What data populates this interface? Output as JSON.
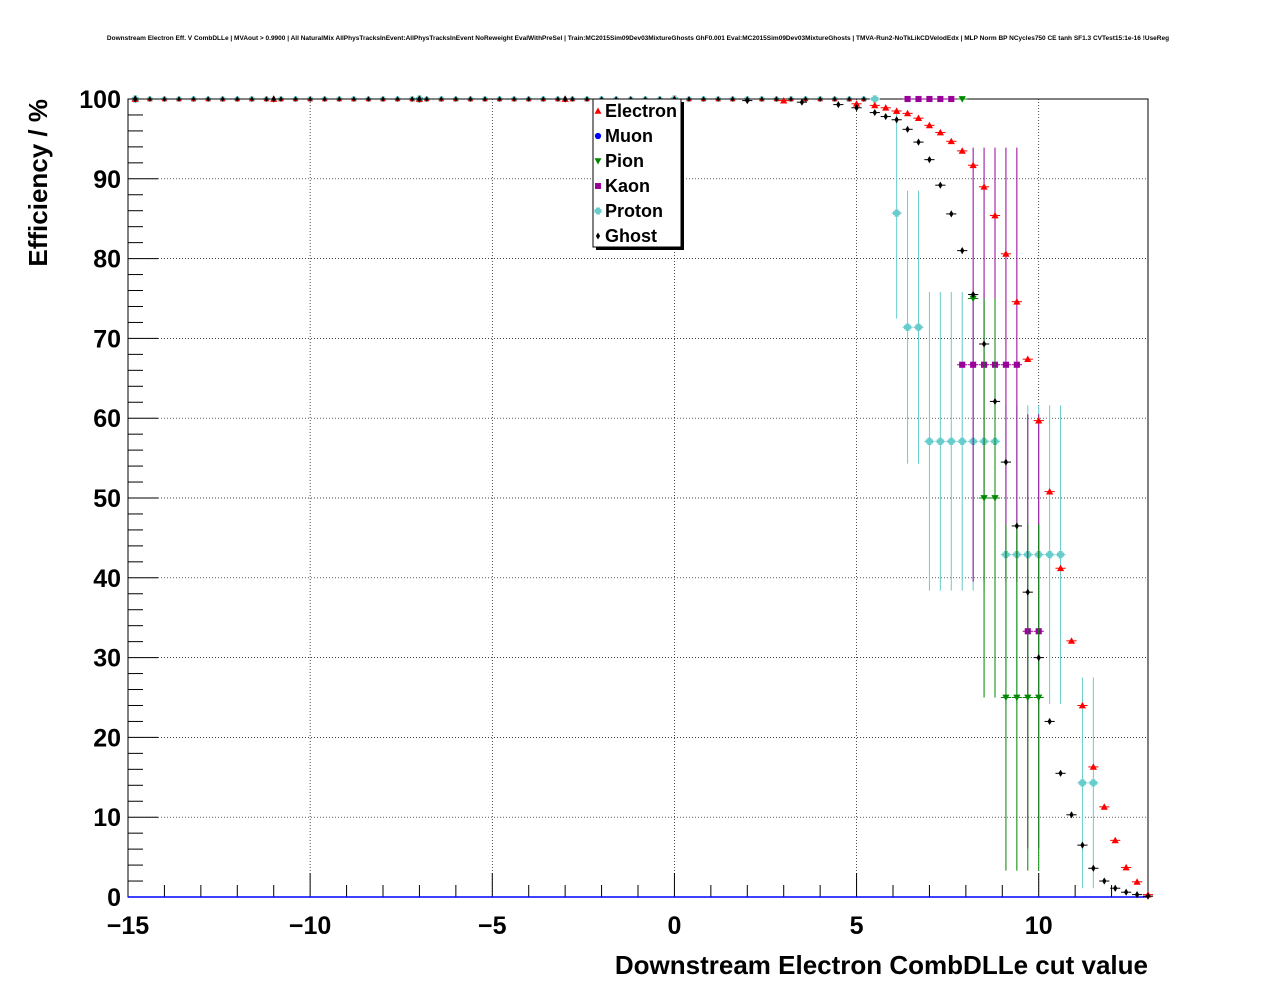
{
  "chart_data": {
    "type": "scatter",
    "title": "Downstream Electron Eff. V CombDLLe | MVAout > 0.9900 | All NaturalMix AllPhysTracksInEvent:AllPhysTracksInEvent NoReweight EvalWithPreSel | Train:MC2015Sim09Dev03MixtureGhosts GhF0.001 Eval:MC2015Sim09Dev03MixtureGhosts | TMVA-Run2-NoTkLikCDVelodEdx | MLP Norm BP NCycles750 CE tanh SF1.3 CVTest15:1e-16 !UseReg",
    "xlabel": "Downstream Electron CombDLLe cut value",
    "ylabel": "Efficiency / %",
    "xlim": [
      -15,
      13
    ],
    "ylim": [
      0,
      100
    ],
    "xticks": [
      -15,
      -10,
      -5,
      0,
      5,
      10
    ],
    "xtick_labels": [
      "−15",
      "−10",
      "−5",
      "0",
      "5",
      "10"
    ],
    "yticks": [
      0,
      10,
      20,
      30,
      40,
      50,
      60,
      70,
      80,
      90,
      100
    ],
    "ytick_labels": [
      "0",
      "10",
      "20",
      "30",
      "40",
      "50",
      "60",
      "70",
      "80",
      "90",
      "100"
    ],
    "grid": true,
    "legend_position": "top-center",
    "series": [
      {
        "name": "Electron",
        "color": "#ff0000",
        "marker": "triangle-up",
        "points": [
          {
            "x": -14.8,
            "y": 100
          },
          {
            "x": -11.0,
            "y": 100
          },
          {
            "x": -7.0,
            "y": 100
          },
          {
            "x": -3.0,
            "y": 100
          },
          {
            "x": 0.0,
            "y": 100
          },
          {
            "x": 3.0,
            "y": 99.8
          },
          {
            "x": 5.0,
            "y": 99.4
          },
          {
            "x": 5.5,
            "y": 99.2
          },
          {
            "x": 5.8,
            "y": 98.9
          },
          {
            "x": 6.1,
            "y": 98.5
          },
          {
            "x": 6.4,
            "y": 98.2
          },
          {
            "x": 6.7,
            "y": 97.6
          },
          {
            "x": 7.0,
            "y": 96.7
          },
          {
            "x": 7.3,
            "y": 95.8
          },
          {
            "x": 7.6,
            "y": 94.7
          },
          {
            "x": 7.9,
            "y": 93.5
          },
          {
            "x": 8.2,
            "y": 91.7
          },
          {
            "x": 8.5,
            "y": 89.0
          },
          {
            "x": 8.8,
            "y": 85.4
          },
          {
            "x": 9.1,
            "y": 80.6
          },
          {
            "x": 9.4,
            "y": 74.6
          },
          {
            "x": 9.7,
            "y": 67.4
          },
          {
            "x": 10.0,
            "y": 59.7
          },
          {
            "x": 10.3,
            "y": 50.8
          },
          {
            "x": 10.6,
            "y": 41.2
          },
          {
            "x": 10.9,
            "y": 32.1
          },
          {
            "x": 11.2,
            "y": 24.0
          },
          {
            "x": 11.5,
            "y": 16.3
          },
          {
            "x": 11.8,
            "y": 11.3
          },
          {
            "x": 12.1,
            "y": 7.1
          },
          {
            "x": 12.4,
            "y": 3.7
          },
          {
            "x": 12.7,
            "y": 1.9
          },
          {
            "x": 13.0,
            "y": 0.3
          }
        ]
      },
      {
        "name": "Muon",
        "color": "#0000ff",
        "marker": "circle",
        "points": [
          {
            "x": -15.0,
            "y": 0.0
          },
          {
            "x": 13.0,
            "y": 0.0
          }
        ]
      },
      {
        "name": "Pion",
        "color": "#008800",
        "marker": "triangle-down",
        "points": [
          {
            "x": 7.9,
            "y": 100,
            "err": 0
          },
          {
            "x": 8.2,
            "y": 75.0,
            "err": 0
          },
          {
            "x": 8.5,
            "y": 50.0,
            "err": 25
          },
          {
            "x": 8.8,
            "y": 50.0,
            "err": 25
          },
          {
            "x": 9.1,
            "y": 25.0,
            "err": 21.7
          },
          {
            "x": 9.4,
            "y": 25.0,
            "err": 21.7
          },
          {
            "x": 9.7,
            "y": 25.0,
            "err": 21.7
          },
          {
            "x": 10.0,
            "y": 25.0,
            "err": 21.7
          }
        ]
      },
      {
        "name": "Kaon",
        "color": "#990099",
        "marker": "square",
        "points": [
          {
            "x": 6.4,
            "y": 100,
            "err": 0
          },
          {
            "x": 6.7,
            "y": 100,
            "err": 0
          },
          {
            "x": 7.0,
            "y": 100,
            "err": 0
          },
          {
            "x": 7.3,
            "y": 100,
            "err": 0
          },
          {
            "x": 7.6,
            "y": 100,
            "err": 0
          },
          {
            "x": 7.9,
            "y": 66.7,
            "err": 0
          },
          {
            "x": 8.2,
            "y": 66.7,
            "err": 27.2
          },
          {
            "x": 8.5,
            "y": 66.7,
            "err": 27.2
          },
          {
            "x": 8.8,
            "y": 66.7,
            "err": 27.2
          },
          {
            "x": 9.1,
            "y": 66.7,
            "err": 27.2
          },
          {
            "x": 9.4,
            "y": 66.7,
            "err": 27.2
          },
          {
            "x": 9.7,
            "y": 33.3,
            "err": 27.2
          },
          {
            "x": 10.0,
            "y": 33.3,
            "err": 27.2
          }
        ]
      },
      {
        "name": "Proton",
        "color": "#66cccc",
        "marker": "cross",
        "points": [
          {
            "x": -14.8,
            "y": 100
          },
          {
            "x": -7.0,
            "y": 100
          },
          {
            "x": 0.0,
            "y": 100
          },
          {
            "x": 5.5,
            "y": 100
          },
          {
            "x": 6.1,
            "y": 85.7,
            "err": 13.2
          },
          {
            "x": 6.4,
            "y": 71.4,
            "err": 17.1
          },
          {
            "x": 6.7,
            "y": 71.4,
            "err": 17.1
          },
          {
            "x": 7.0,
            "y": 57.1,
            "err": 18.7
          },
          {
            "x": 7.3,
            "y": 57.1,
            "err": 18.7
          },
          {
            "x": 7.6,
            "y": 57.1,
            "err": 18.7
          },
          {
            "x": 7.9,
            "y": 57.1,
            "err": 18.7
          },
          {
            "x": 8.2,
            "y": 57.1,
            "err": 18.7
          },
          {
            "x": 8.5,
            "y": 57.1,
            "err": 18.7
          },
          {
            "x": 8.8,
            "y": 57.1,
            "err": 18.7
          },
          {
            "x": 9.1,
            "y": 42.9,
            "err": 18.7
          },
          {
            "x": 9.4,
            "y": 42.9,
            "err": 18.7
          },
          {
            "x": 9.7,
            "y": 42.9,
            "err": 18.7
          },
          {
            "x": 10.0,
            "y": 42.9,
            "err": 18.7
          },
          {
            "x": 10.3,
            "y": 42.9,
            "err": 18.7
          },
          {
            "x": 10.6,
            "y": 42.9,
            "err": 18.7
          },
          {
            "x": 11.2,
            "y": 14.3,
            "err": 13.2
          },
          {
            "x": 11.5,
            "y": 14.3,
            "err": 13.2
          }
        ]
      },
      {
        "name": "Ghost",
        "color": "#000000",
        "marker": "diamond",
        "points": [
          {
            "x": -14.8,
            "y": 100
          },
          {
            "x": -11.0,
            "y": 100
          },
          {
            "x": -7.0,
            "y": 100
          },
          {
            "x": -3.0,
            "y": 100
          },
          {
            "x": 0.0,
            "y": 99.9
          },
          {
            "x": 2.0,
            "y": 99.8
          },
          {
            "x": 3.5,
            "y": 99.6
          },
          {
            "x": 4.5,
            "y": 99.3
          },
          {
            "x": 5.0,
            "y": 98.9
          },
          {
            "x": 5.5,
            "y": 98.3
          },
          {
            "x": 5.8,
            "y": 97.8
          },
          {
            "x": 6.1,
            "y": 97.4
          },
          {
            "x": 6.4,
            "y": 96.2
          },
          {
            "x": 6.7,
            "y": 94.6
          },
          {
            "x": 7.0,
            "y": 92.4
          },
          {
            "x": 7.3,
            "y": 89.2
          },
          {
            "x": 7.6,
            "y": 85.6
          },
          {
            "x": 7.9,
            "y": 81.0
          },
          {
            "x": 8.2,
            "y": 75.5
          },
          {
            "x": 8.5,
            "y": 69.3
          },
          {
            "x": 8.8,
            "y": 62.1
          },
          {
            "x": 9.1,
            "y": 54.5
          },
          {
            "x": 9.4,
            "y": 46.5
          },
          {
            "x": 9.7,
            "y": 38.2
          },
          {
            "x": 10.0,
            "y": 30.0
          },
          {
            "x": 10.3,
            "y": 22.0
          },
          {
            "x": 10.6,
            "y": 15.5
          },
          {
            "x": 10.9,
            "y": 10.3
          },
          {
            "x": 11.2,
            "y": 6.5
          },
          {
            "x": 11.5,
            "y": 3.6
          },
          {
            "x": 11.8,
            "y": 2.0
          },
          {
            "x": 12.1,
            "y": 1.1
          },
          {
            "x": 12.4,
            "y": 0.6
          },
          {
            "x": 12.7,
            "y": 0.3
          },
          {
            "x": 13.0,
            "y": 0.1
          }
        ]
      }
    ]
  }
}
